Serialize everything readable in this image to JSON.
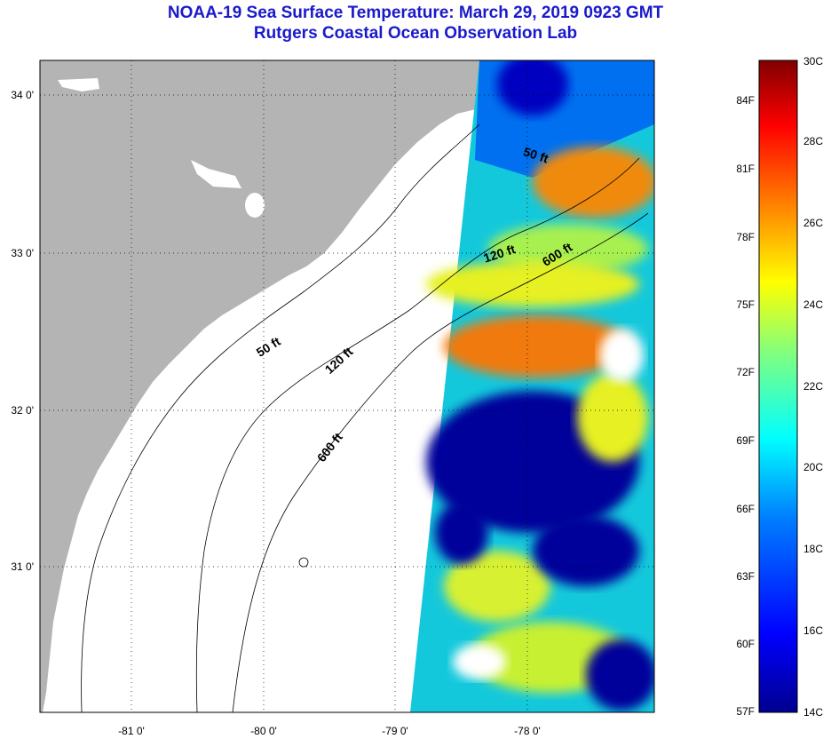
{
  "title": "NOAA-19 Sea Surface Temperature:  March 29, 2019 0923 GMT",
  "subtitle": "Rutgers Coastal Ocean Observation Lab",
  "map": {
    "lat_ticks": [
      "34 0'",
      "33 0'",
      "32 0'",
      "31 0'"
    ],
    "lon_ticks": [
      "-81 0'",
      "-80 0'",
      "-79 0'",
      "-78 0'"
    ],
    "land_color": "#b4b4b4",
    "contour_labels": [
      "50 ft",
      "120 ft",
      "600 ft",
      "50 ft",
      "120 ft",
      "600 ft"
    ]
  },
  "colorbar": {
    "f_labels": [
      "84F",
      "81F",
      "78F",
      "75F",
      "72F",
      "69F",
      "66F",
      "63F",
      "60F",
      "57F"
    ],
    "c_labels": [
      "30C",
      "28C",
      "26C",
      "24C",
      "22C",
      "20C",
      "18C",
      "16C",
      "14C"
    ],
    "colors": [
      "#00008f",
      "#0000ff",
      "#0080ff",
      "#00ffff",
      "#80ff80",
      "#ffff00",
      "#ff8000",
      "#ff0000",
      "#800000"
    ]
  }
}
